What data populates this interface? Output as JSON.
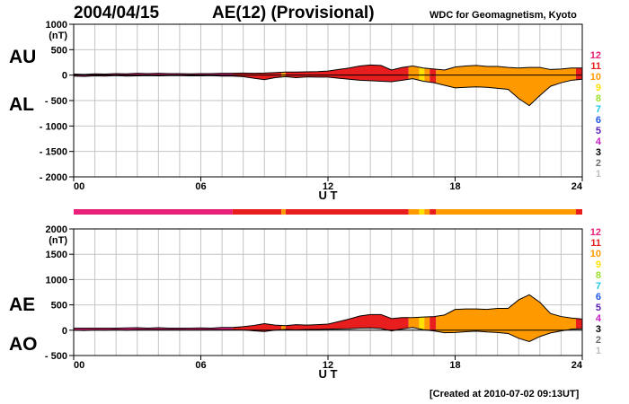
{
  "header": {
    "date": "2004/04/15",
    "title": "AE(12) (Provisional)",
    "institution": "WDC for Geomagnetism, Kyoto"
  },
  "footer": {
    "created": "[Created at 2010-07-02 09:13UT]"
  },
  "legend": {
    "entries": [
      {
        "label": "12",
        "color": "#e8207a"
      },
      {
        "label": "11",
        "color": "#e81e1e"
      },
      {
        "label": "10",
        "color": "#ff9900"
      },
      {
        "label": "9",
        "color": "#ffe000"
      },
      {
        "label": "8",
        "color": "#9be02b"
      },
      {
        "label": "7",
        "color": "#1ec8e6"
      },
      {
        "label": "6",
        "color": "#1e5ae6"
      },
      {
        "label": "5",
        "color": "#5a1eb4"
      },
      {
        "label": "4",
        "color": "#c81ec8"
      },
      {
        "label": "3",
        "color": "#000000"
      },
      {
        "label": "2",
        "color": "#6e6e6e"
      },
      {
        "label": "1",
        "color": "#bebebe"
      }
    ]
  },
  "chart_data": [
    {
      "type": "area",
      "panel": "AU/AL",
      "side_labels": [
        "AU",
        "AL"
      ],
      "ylabel": "(nT)",
      "xlabel": "U T",
      "ylim": [
        -2000,
        1000
      ],
      "yticks": [
        "1000",
        "500",
        "0",
        "- 500",
        "- 1000",
        "- 1500",
        "- 2000"
      ],
      "ytick_values": [
        1000,
        500,
        0,
        -500,
        -1000,
        -1500,
        -2000
      ],
      "xlim": [
        0,
        24
      ],
      "xticks": [
        "00",
        "06",
        "12",
        "18",
        "24"
      ],
      "xtick_values": [
        0,
        6,
        12,
        18,
        24
      ],
      "grid": true,
      "x": [
        0,
        0.5,
        1,
        1.5,
        2,
        2.5,
        3,
        3.5,
        4,
        4.5,
        5,
        5.5,
        6,
        6.5,
        7,
        7.5,
        8,
        8.5,
        9,
        9.5,
        10,
        10.5,
        11,
        11.5,
        12,
        12.5,
        13,
        13.5,
        14,
        14.5,
        15,
        15.5,
        16,
        16.5,
        17,
        17.5,
        18,
        18.5,
        19,
        19.5,
        20,
        20.5,
        21,
        21.5,
        22,
        22.5,
        23,
        23.5,
        24
      ],
      "series": [
        {
          "name": "AU",
          "values": [
            20,
            15,
            25,
            20,
            30,
            25,
            35,
            30,
            35,
            30,
            30,
            25,
            30,
            30,
            35,
            35,
            40,
            35,
            40,
            50,
            60,
            60,
            65,
            70,
            80,
            110,
            140,
            180,
            200,
            190,
            100,
            150,
            180,
            140,
            120,
            100,
            160,
            180,
            190,
            170,
            170,
            150,
            140,
            150,
            150,
            110,
            120,
            140,
            140
          ]
        },
        {
          "name": "AL",
          "values": [
            -20,
            -25,
            -15,
            -20,
            -10,
            -20,
            -15,
            -10,
            -15,
            -10,
            -10,
            -15,
            -15,
            -10,
            -20,
            -20,
            -30,
            -60,
            -90,
            -50,
            -30,
            -50,
            -35,
            -40,
            -40,
            -60,
            -80,
            -100,
            -110,
            -120,
            -130,
            -100,
            -70,
            -120,
            -150,
            -200,
            -250,
            -240,
            -230,
            -240,
            -260,
            -280,
            -460,
            -600,
            -400,
            -220,
            -150,
            -100,
            -80
          ]
        }
      ],
      "activity_colors": [
        {
          "from": 0,
          "to": 7.5,
          "level": "12"
        },
        {
          "from": 7.5,
          "to": 9.8,
          "level": "11"
        },
        {
          "from": 9.8,
          "to": 10.0,
          "level": "10"
        },
        {
          "from": 10.0,
          "to": 15.8,
          "level": "11"
        },
        {
          "from": 15.8,
          "to": 16.3,
          "level": "10"
        },
        {
          "from": 16.3,
          "to": 16.55,
          "level": "9"
        },
        {
          "from": 16.55,
          "to": 16.8,
          "level": "10"
        },
        {
          "from": 16.8,
          "to": 17.1,
          "level": "11"
        },
        {
          "from": 17.1,
          "to": 23.7,
          "level": "10"
        },
        {
          "from": 23.7,
          "to": 24,
          "level": "11"
        }
      ]
    },
    {
      "type": "area",
      "panel": "AE/AO",
      "side_labels": [
        "AE",
        "AO"
      ],
      "ylabel": "(nT)",
      "xlabel": "U T",
      "ylim": [
        -500,
        2000
      ],
      "yticks": [
        "2000",
        "1500",
        "1000",
        "500",
        "0",
        "- 500"
      ],
      "ytick_values": [
        2000,
        1500,
        1000,
        500,
        0,
        -500
      ],
      "xlim": [
        0,
        24
      ],
      "xticks": [
        "00",
        "06",
        "12",
        "18",
        "24"
      ],
      "xtick_values": [
        0,
        6,
        12,
        18,
        24
      ],
      "grid": true,
      "x": [
        0,
        0.5,
        1,
        1.5,
        2,
        2.5,
        3,
        3.5,
        4,
        4.5,
        5,
        5.5,
        6,
        6.5,
        7,
        7.5,
        8,
        8.5,
        9,
        9.5,
        10,
        10.5,
        11,
        11.5,
        12,
        12.5,
        13,
        13.5,
        14,
        14.5,
        15,
        15.5,
        16,
        16.5,
        17,
        17.5,
        18,
        18.5,
        19,
        19.5,
        20,
        20.5,
        21,
        21.5,
        22,
        22.5,
        23,
        23.5,
        24
      ],
      "series": [
        {
          "name": "AE",
          "values": [
            40,
            40,
            40,
            40,
            40,
            45,
            50,
            40,
            50,
            40,
            40,
            40,
            45,
            40,
            55,
            55,
            70,
            95,
            130,
            100,
            90,
            110,
            100,
            110,
            120,
            170,
            220,
            280,
            310,
            310,
            230,
            250,
            250,
            260,
            270,
            300,
            410,
            420,
            420,
            410,
            430,
            430,
            600,
            700,
            550,
            330,
            270,
            240,
            220
          ]
        },
        {
          "name": "AO",
          "values": [
            0,
            -5,
            5,
            0,
            10,
            2,
            10,
            10,
            10,
            10,
            10,
            5,
            8,
            10,
            8,
            8,
            5,
            -12,
            -25,
            0,
            15,
            5,
            15,
            15,
            20,
            25,
            30,
            40,
            45,
            35,
            -15,
            25,
            55,
            10,
            -15,
            -50,
            -45,
            -30,
            -20,
            -35,
            -45,
            -65,
            -160,
            -225,
            -125,
            -55,
            -15,
            20,
            30
          ]
        }
      ],
      "activity_colors": [
        {
          "from": 0,
          "to": 7.5,
          "level": "12"
        },
        {
          "from": 7.5,
          "to": 9.8,
          "level": "11"
        },
        {
          "from": 9.8,
          "to": 10.0,
          "level": "10"
        },
        {
          "from": 10.0,
          "to": 15.8,
          "level": "11"
        },
        {
          "from": 15.8,
          "to": 16.3,
          "level": "10"
        },
        {
          "from": 16.3,
          "to": 16.55,
          "level": "9"
        },
        {
          "from": 16.55,
          "to": 16.8,
          "level": "10"
        },
        {
          "from": 16.8,
          "to": 17.1,
          "level": "11"
        },
        {
          "from": 17.1,
          "to": 23.7,
          "level": "10"
        },
        {
          "from": 23.7,
          "to": 24,
          "level": "11"
        }
      ]
    }
  ]
}
